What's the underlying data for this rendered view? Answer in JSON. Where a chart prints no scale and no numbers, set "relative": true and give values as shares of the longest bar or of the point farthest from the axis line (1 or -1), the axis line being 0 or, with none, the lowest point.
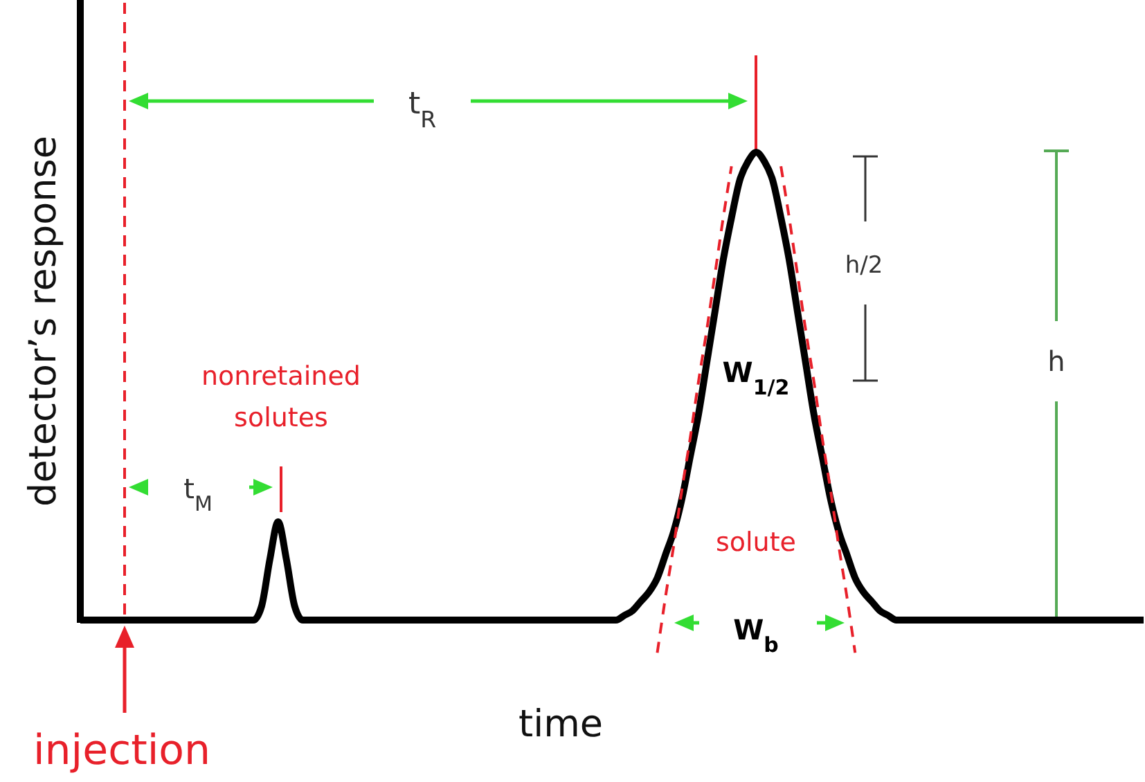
{
  "chart_data": {
    "type": "line",
    "relative": true,
    "xlabel": "time",
    "ylabel": "detector’s response",
    "tick_labels": false,
    "marker": "none",
    "line_style": "solid",
    "categories": [
      null,
      null,
      null,
      null,
      null,
      null,
      null,
      null,
      null,
      null,
      null,
      null,
      null,
      null,
      null,
      null,
      null,
      null,
      null,
      null,
      null,
      null,
      null,
      null,
      null,
      null,
      null,
      null,
      null,
      null,
      null,
      null,
      null,
      null,
      null,
      null,
      null,
      null,
      null,
      null,
      null,
      null,
      null,
      null,
      null,
      null,
      null,
      null,
      null,
      null,
      null,
      null,
      null,
      null,
      null,
      null,
      null,
      null,
      null,
      null,
      null,
      null,
      null,
      null,
      null,
      null,
      null,
      null,
      null,
      null,
      null,
      null,
      null,
      null,
      null,
      null,
      null,
      null,
      null,
      null,
      null,
      null,
      null,
      null,
      null,
      null,
      null,
      null,
      null,
      null,
      null,
      null,
      null,
      null,
      null,
      null,
      null,
      null,
      null,
      null,
      null,
      null,
      null,
      null,
      null,
      null,
      null,
      null,
      null,
      null,
      null,
      null,
      null,
      null,
      null,
      null,
      null,
      null,
      null,
      null,
      null,
      null,
      null,
      null,
      null,
      null,
      null,
      null,
      null,
      null
    ],
    "series": [
      {
        "color": "#000000",
        "values": [
          0,
          0,
          0,
          0,
          0,
          0,
          0,
          0,
          0,
          0,
          0,
          0,
          0,
          0,
          0,
          0,
          0,
          0,
          0,
          0,
          0,
          0,
          0.03,
          0.13,
          0.21,
          0.13,
          0.03,
          0,
          0,
          0,
          0,
          0,
          0,
          0,
          0,
          0,
          0,
          0,
          0,
          0,
          0,
          0,
          0,
          0,
          0,
          0,
          0,
          0,
          0,
          0,
          0,
          0,
          0,
          0,
          0,
          0,
          0,
          0,
          0,
          0,
          0,
          0,
          0,
          0,
          0,
          0,
          0.01,
          0.02,
          0.04,
          0.06,
          0.09,
          0.14,
          0.19,
          0.26,
          0.35,
          0.44,
          0.55,
          0.66,
          0.77,
          0.86,
          0.94,
          0.98,
          1,
          0.98,
          0.94,
          0.86,
          0.77,
          0.66,
          0.55,
          0.44,
          0.35,
          0.26,
          0.19,
          0.14,
          0.09,
          0.06,
          0.04,
          0.02,
          0.01,
          0,
          0,
          0,
          0,
          0,
          0,
          0,
          0,
          0,
          0,
          0,
          0,
          0,
          0,
          0,
          0,
          0,
          0,
          0,
          0,
          0,
          0,
          0,
          0,
          0,
          0,
          0,
          0,
          0,
          0,
          0
        ]
      },
      {
        "type": "line",
        "line_style": "dashed",
        "color": "#e8202a",
        "values": [
          null,
          null,
          null,
          null,
          null,
          null,
          null,
          null,
          null,
          null,
          null,
          null,
          null,
          null,
          null,
          null,
          null,
          null,
          null,
          null,
          null,
          null,
          null,
          null,
          null,
          null,
          null,
          null,
          null,
          null,
          null,
          null,
          null,
          null,
          null,
          null,
          null,
          null,
          null,
          null,
          null,
          null,
          null,
          null,
          null,
          null,
          null,
          null,
          null,
          null,
          null,
          null,
          null,
          null,
          null,
          null,
          null,
          null,
          null,
          null,
          null,
          null,
          null,
          null,
          null,
          null,
          null,
          null,
          null,
          null,
          -0.07,
          0.05,
          0.16,
          0.28,
          0.39,
          0.51,
          0.62,
          0.74,
          0.86,
          0.97,
          null,
          null,
          null,
          null,
          null,
          null,
          null,
          null,
          null,
          null,
          null,
          null,
          null,
          null,
          null,
          null,
          null,
          null,
          null,
          null,
          null,
          null,
          null,
          null,
          null,
          null,
          null,
          null,
          null,
          null,
          null,
          null,
          null,
          null,
          null,
          null,
          null,
          null,
          null,
          null,
          null,
          null,
          null,
          null,
          null,
          null,
          null,
          null,
          null,
          null
        ]
      },
      {
        "type": "line",
        "line_style": "dashed",
        "color": "#e8202a",
        "values": [
          null,
          null,
          null,
          null,
          null,
          null,
          null,
          null,
          null,
          null,
          null,
          null,
          null,
          null,
          null,
          null,
          null,
          null,
          null,
          null,
          null,
          null,
          null,
          null,
          null,
          null,
          null,
          null,
          null,
          null,
          null,
          null,
          null,
          null,
          null,
          null,
          null,
          null,
          null,
          null,
          null,
          null,
          null,
          null,
          null,
          null,
          null,
          null,
          null,
          null,
          null,
          null,
          null,
          null,
          null,
          null,
          null,
          null,
          null,
          null,
          null,
          null,
          null,
          null,
          null,
          null,
          null,
          null,
          null,
          null,
          null,
          null,
          null,
          null,
          null,
          null,
          null,
          null,
          null,
          null,
          null,
          null,
          null,
          null,
          null,
          0.97,
          0.86,
          0.74,
          0.62,
          0.51,
          0.39,
          0.28,
          0.16,
          0.05,
          -0.07,
          null,
          null,
          null,
          null,
          null,
          null,
          null,
          null,
          null,
          null,
          null,
          null,
          null,
          null,
          null,
          null,
          null,
          null,
          null,
          null,
          null,
          null,
          null,
          null,
          null,
          null,
          null,
          null,
          null,
          null,
          null,
          null,
          null,
          null,
          null
        ]
      }
    ],
    "annotations": [
      "t$_{R}$",
      "t$_{M}$",
      "nonretained",
      "solutes",
      "solute",
      "W$_{1/2}$",
      "W$_{b}$",
      "h/2",
      "h",
      "injection"
    ]
  }
}
